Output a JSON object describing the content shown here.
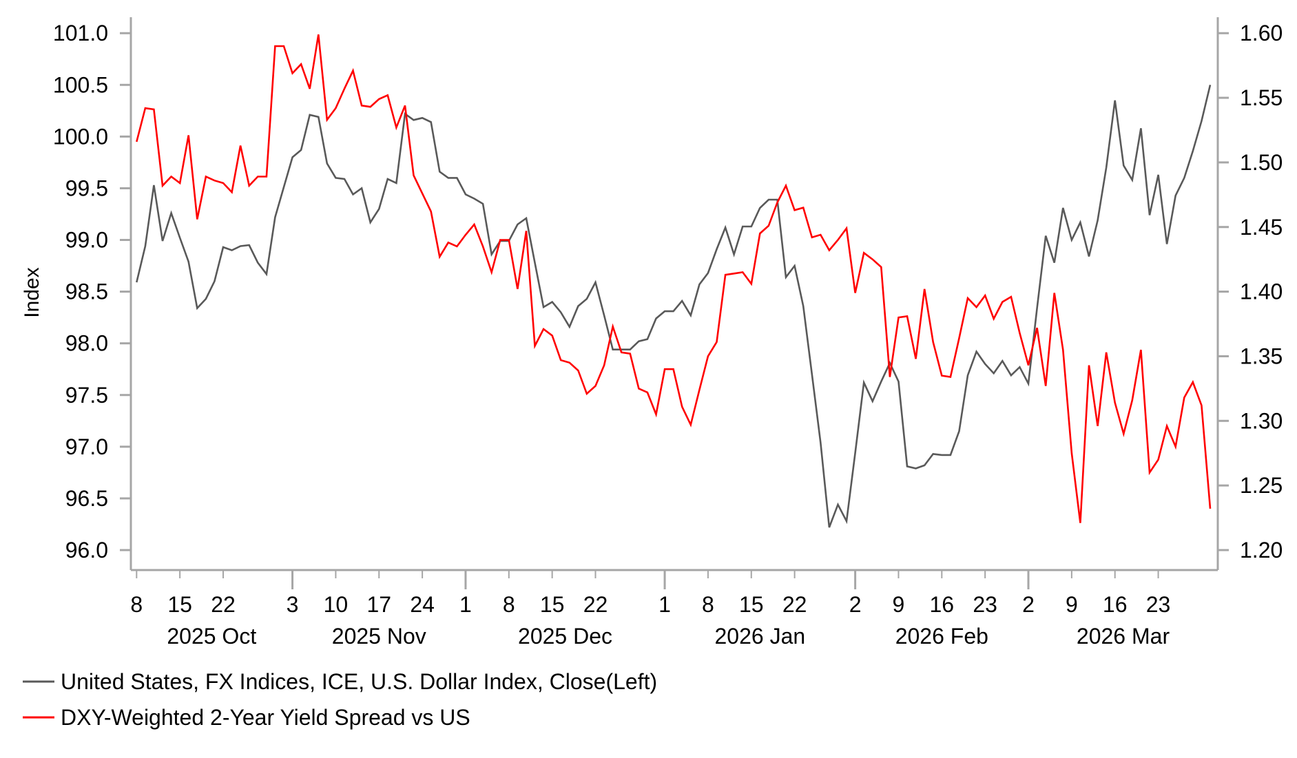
{
  "chart_data": {
    "type": "line",
    "title": "",
    "ylabel": "Index",
    "ylabel_right": "",
    "xlabel": "",
    "ylim": [
      96.0,
      101.0
    ],
    "ylim_right": [
      1.2,
      1.6
    ],
    "yticks": [
      "96.0",
      "96.5",
      "97.0",
      "97.5",
      "98.0",
      "98.5",
      "99.0",
      "99.5",
      "100.0",
      "100.5",
      "101.0"
    ],
    "yticks_right": [
      "1.20",
      "1.25",
      "1.30",
      "1.35",
      "1.40",
      "1.45",
      "1.50",
      "1.55",
      "1.60"
    ],
    "grid": false,
    "legend_position": "bottom-left",
    "x_ticks": [
      {
        "date": "2025-10-08",
        "label": "8"
      },
      {
        "date": "2025-10-15",
        "label": "15"
      },
      {
        "date": "2025-10-22",
        "label": "22"
      },
      {
        "date": "2025-11-03",
        "label": "3"
      },
      {
        "date": "2025-11-10",
        "label": "10"
      },
      {
        "date": "2025-11-17",
        "label": "17"
      },
      {
        "date": "2025-11-24",
        "label": "24"
      },
      {
        "date": "2025-12-01",
        "label": "1"
      },
      {
        "date": "2025-12-08",
        "label": "8"
      },
      {
        "date": "2025-12-15",
        "label": "15"
      },
      {
        "date": "2025-12-22",
        "label": "22"
      },
      {
        "date": "2026-01-01",
        "label": "1"
      },
      {
        "date": "2026-01-08",
        "label": "8"
      },
      {
        "date": "2026-01-15",
        "label": "15"
      },
      {
        "date": "2026-01-22",
        "label": "22"
      },
      {
        "date": "2026-02-02",
        "label": "2"
      },
      {
        "date": "2026-02-09",
        "label": "9"
      },
      {
        "date": "2026-02-16",
        "label": "16"
      },
      {
        "date": "2026-02-23",
        "label": "23"
      },
      {
        "date": "2026-03-02",
        "label": "2"
      },
      {
        "date": "2026-03-09",
        "label": "9"
      },
      {
        "date": "2026-03-16",
        "label": "16"
      },
      {
        "date": "2026-03-23",
        "label": "23"
      }
    ],
    "months": [
      {
        "key": "2025-10",
        "label": "2025 Oct"
      },
      {
        "key": "2025-11",
        "label": "2025 Nov"
      },
      {
        "key": "2025-12",
        "label": "2025 Dec"
      },
      {
        "key": "2026-01",
        "label": "2026 Jan"
      },
      {
        "key": "2026-02",
        "label": "2026 Feb"
      },
      {
        "key": "2026-03",
        "label": "2026 Mar"
      }
    ],
    "x": [
      "2025-10-08",
      "2025-10-09",
      "2025-10-10",
      "2025-10-13",
      "2025-10-14",
      "2025-10-15",
      "2025-10-16",
      "2025-10-17",
      "2025-10-20",
      "2025-10-21",
      "2025-10-22",
      "2025-10-23",
      "2025-10-24",
      "2025-10-27",
      "2025-10-28",
      "2025-10-29",
      "2025-10-30",
      "2025-10-31",
      "2025-11-03",
      "2025-11-04",
      "2025-11-05",
      "2025-11-06",
      "2025-11-07",
      "2025-11-10",
      "2025-11-11",
      "2025-11-12",
      "2025-11-13",
      "2025-11-14",
      "2025-11-17",
      "2025-11-18",
      "2025-11-19",
      "2025-11-20",
      "2025-11-21",
      "2025-11-24",
      "2025-11-25",
      "2025-11-26",
      "2025-11-27",
      "2025-11-28",
      "2025-12-01",
      "2025-12-02",
      "2025-12-03",
      "2025-12-04",
      "2025-12-05",
      "2025-12-08",
      "2025-12-09",
      "2025-12-10",
      "2025-12-11",
      "2025-12-12",
      "2025-12-15",
      "2025-12-16",
      "2025-12-17",
      "2025-12-18",
      "2025-12-19",
      "2025-12-22",
      "2025-12-23",
      "2025-12-24",
      "2025-12-25",
      "2025-12-26",
      "2025-12-29",
      "2025-12-30",
      "2025-12-31",
      "2026-01-01",
      "2026-01-02",
      "2026-01-05",
      "2026-01-06",
      "2026-01-07",
      "2026-01-08",
      "2026-01-09",
      "2026-01-12",
      "2026-01-13",
      "2026-01-14",
      "2026-01-15",
      "2026-01-16",
      "2026-01-19",
      "2026-01-20",
      "2026-01-21",
      "2026-01-22",
      "2026-01-23",
      "2026-01-26",
      "2026-01-27",
      "2026-01-28",
      "2026-01-29",
      "2026-01-30",
      "2026-02-02",
      "2026-02-03",
      "2026-02-04",
      "2026-02-05",
      "2026-02-06",
      "2026-02-09",
      "2026-02-10",
      "2026-02-11",
      "2026-02-12",
      "2026-02-13",
      "2026-02-16",
      "2026-02-17",
      "2026-02-18",
      "2026-02-19",
      "2026-02-20",
      "2026-02-23",
      "2026-02-24",
      "2026-02-25",
      "2026-02-26",
      "2026-02-27",
      "2026-03-02",
      "2026-03-03",
      "2026-03-04",
      "2026-03-05",
      "2026-03-06",
      "2026-03-09",
      "2026-03-10",
      "2026-03-11",
      "2026-03-12",
      "2026-03-13",
      "2026-03-16",
      "2026-03-17",
      "2026-03-18",
      "2026-03-19",
      "2026-03-20",
      "2026-03-23",
      "2026-03-24",
      "2026-03-25",
      "2026-03-26",
      "2026-03-27",
      "2026-03-30",
      "2026-03-31"
    ],
    "series": [
      {
        "name": "United States, FX Indices, ICE, U.S. Dollar Index, Close(Left)",
        "axis": "left",
        "color": "#595959",
        "values": [
          98.59,
          98.94,
          99.53,
          98.99,
          99.26,
          99.02,
          98.79,
          98.34,
          98.43,
          98.6,
          98.93,
          98.9,
          98.94,
          98.95,
          98.78,
          98.67,
          99.22,
          99.51,
          99.8,
          99.87,
          100.21,
          100.19,
          99.74,
          99.6,
          99.59,
          99.44,
          99.5,
          99.17,
          99.3,
          99.59,
          99.55,
          100.22,
          100.16,
          100.18,
          100.14,
          99.66,
          99.6,
          99.6,
          99.44,
          99.4,
          99.35,
          98.86,
          98.99,
          98.99,
          99.15,
          99.21,
          98.78,
          98.35,
          98.4,
          98.3,
          98.16,
          98.36,
          98.43,
          98.59,
          98.27,
          97.94,
          97.94,
          97.94,
          98.02,
          98.04,
          98.24,
          98.31,
          98.31,
          98.41,
          98.27,
          98.57,
          98.68,
          98.91,
          99.12,
          98.86,
          99.13,
          99.13,
          99.31,
          99.39,
          99.39,
          98.64,
          98.75,
          98.36,
          97.7,
          97.04,
          96.22,
          96.44,
          96.28,
          96.94,
          97.62,
          97.44,
          97.63,
          97.81,
          97.63,
          96.81,
          96.79,
          96.82,
          96.93,
          96.92,
          96.92,
          97.15,
          97.69,
          97.92,
          97.8,
          97.71,
          97.83,
          97.69,
          97.77,
          97.61,
          98.34,
          99.04,
          98.78,
          99.31,
          99.0,
          99.17,
          98.84,
          99.19,
          99.7,
          100.35,
          99.72,
          99.58,
          100.08,
          99.24,
          99.63,
          98.96,
          99.43,
          99.6,
          99.86,
          100.15,
          100.5
        ]
      },
      {
        "name": "DXY-Weighted 2-Year Yield Spread vs US",
        "axis": "right",
        "color": "#ff0000",
        "values": [
          1.516,
          1.542,
          1.541,
          1.482,
          1.489,
          1.484,
          1.521,
          1.456,
          1.489,
          1.486,
          1.484,
          1.477,
          1.513,
          1.482,
          1.489,
          1.489,
          1.59,
          1.59,
          1.569,
          1.576,
          1.557,
          1.599,
          1.533,
          1.542,
          1.557,
          1.571,
          1.544,
          1.543,
          1.549,
          1.552,
          1.527,
          1.544,
          1.49,
          1.476,
          1.462,
          1.427,
          1.438,
          1.435,
          1.444,
          1.452,
          1.435,
          1.415,
          1.44,
          1.44,
          1.402,
          1.447,
          1.358,
          1.371,
          1.366,
          1.347,
          1.345,
          1.339,
          1.321,
          1.327,
          1.343,
          1.373,
          1.353,
          1.352,
          1.325,
          1.322,
          1.305,
          1.34,
          1.34,
          1.311,
          1.297,
          1.324,
          1.35,
          1.361,
          1.413,
          1.414,
          1.415,
          1.406,
          1.445,
          1.451,
          1.469,
          1.482,
          1.463,
          1.465,
          1.442,
          1.444,
          1.432,
          1.44,
          1.449,
          1.399,
          1.43,
          1.425,
          1.419,
          1.334,
          1.38,
          1.381,
          1.348,
          1.402,
          1.361,
          1.335,
          1.334,
          1.364,
          1.395,
          1.388,
          1.397,
          1.379,
          1.392,
          1.396,
          1.368,
          1.343,
          1.372,
          1.327,
          1.399,
          1.355,
          1.275,
          1.221,
          1.343,
          1.296,
          1.353,
          1.314,
          1.29,
          1.316,
          1.355,
          1.26,
          1.27,
          1.296,
          1.28,
          1.318,
          1.33,
          1.312,
          1.232
        ]
      }
    ],
    "axis_color": "#a6a6a6"
  }
}
